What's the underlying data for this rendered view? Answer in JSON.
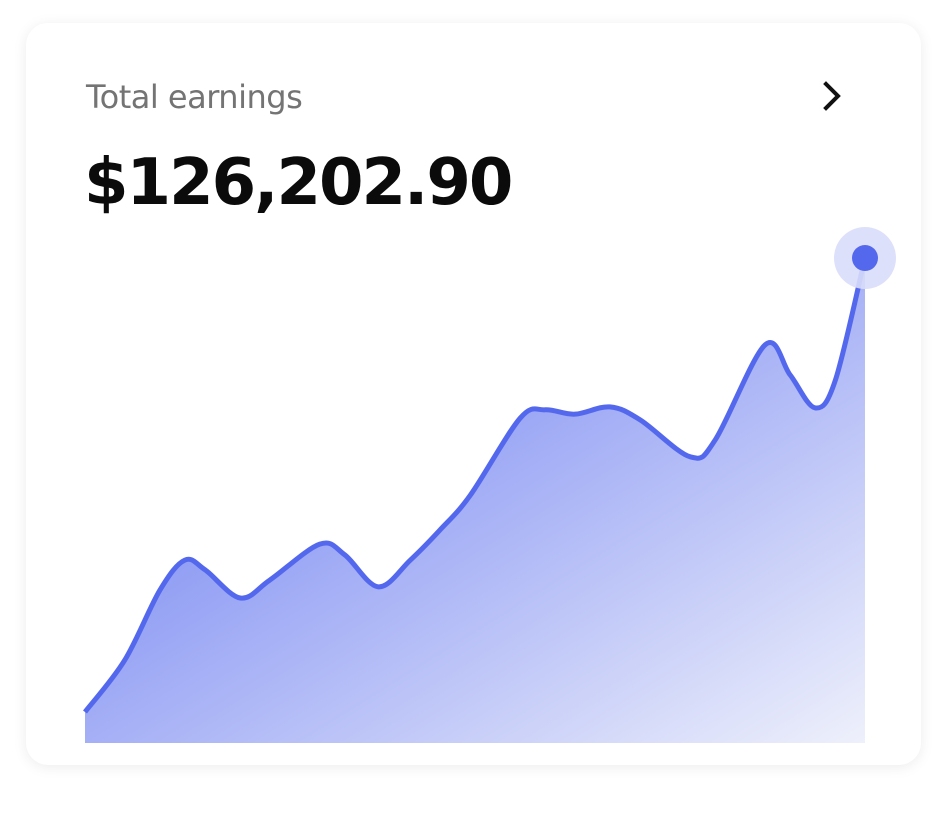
{
  "card": {
    "title": "Total earnings",
    "amount": "$126,202.90",
    "action_icon": "chevron-right-icon"
  },
  "colors": {
    "line": "#5468ee",
    "fill_start": "#5b6ff0",
    "fill_end": "#eef0fb",
    "halo": "#d9ddf9"
  },
  "chart_data": {
    "type": "area",
    "title": "",
    "xlabel": "",
    "ylabel": "",
    "grid": false,
    "legend": "none",
    "x": [
      0,
      5.1,
      9.6,
      12.8,
      15.4,
      19.9,
      23.7,
      30.1,
      33.3,
      37.6,
      41.7,
      45.5,
      49.4,
      55.8,
      59.0,
      62.8,
      67.3,
      71.2,
      77.6,
      80.8,
      87.2,
      90.4,
      93.6,
      96.2,
      100
    ],
    "values": [
      6.4,
      17.1,
      31.5,
      37.7,
      35.7,
      29.9,
      33.6,
      41.0,
      38.8,
      32.2,
      37.7,
      43.9,
      51.1,
      67.0,
      68.7,
      67.8,
      69.3,
      66.6,
      59.0,
      62.5,
      82.1,
      75.9,
      69.1,
      74.8,
      100
    ],
    "xlim": [
      0,
      100
    ],
    "ylim": [
      0,
      100
    ],
    "highlight_last_point": true
  }
}
